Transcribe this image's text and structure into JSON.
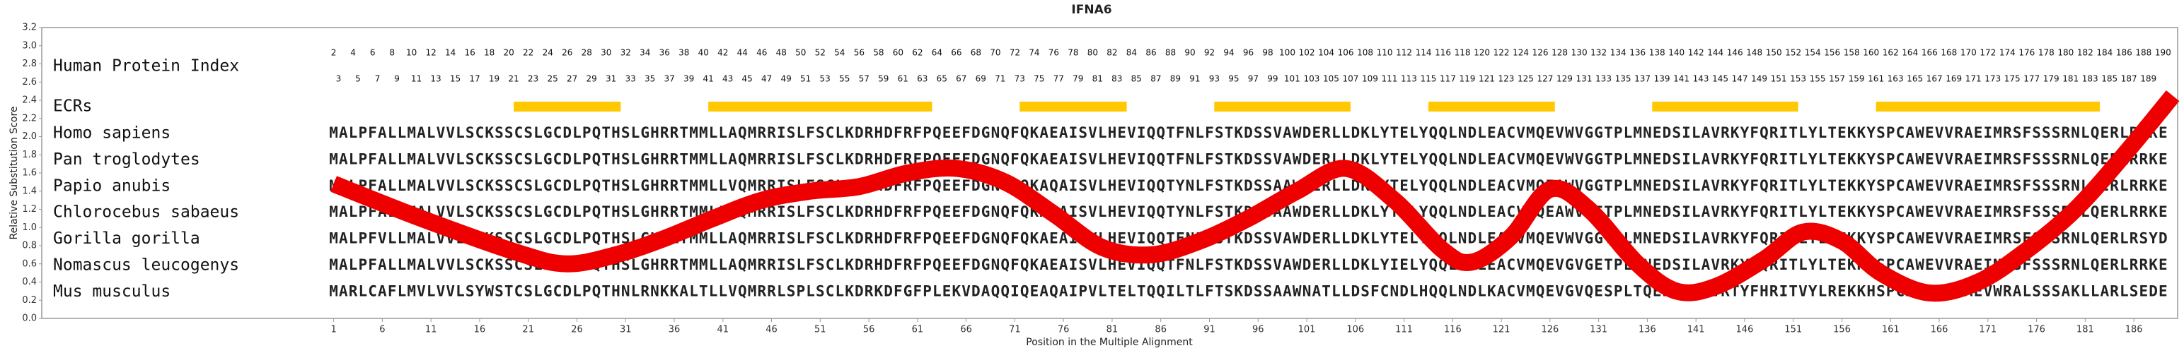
{
  "chart_data": {
    "type": "line",
    "title": "IFNA6",
    "xlabel": "Position in the Multiple Alignment",
    "ylabel": "Relative Substitution Score",
    "xlim": [
      -29,
      190.5
    ],
    "ylim": [
      0,
      3.2
    ],
    "xticks": [
      1,
      6,
      11,
      16,
      21,
      26,
      31,
      36,
      41,
      46,
      51,
      56,
      61,
      66,
      71,
      76,
      81,
      86,
      91,
      96,
      101,
      106,
      111,
      116,
      121,
      126,
      131,
      136,
      141,
      146,
      151,
      156,
      161,
      166,
      171,
      176,
      181,
      186
    ],
    "yticks": [
      {
        "value": 0,
        "label": "0.0"
      },
      0.2,
      0.4,
      0.6,
      0.8,
      {
        "value": 1,
        "label": "1.0"
      },
      1.2,
      1.4,
      1.6,
      1.8,
      {
        "value": 2,
        "label": "2.0"
      },
      2.2,
      2.4,
      2.6,
      2.8,
      {
        "value": 3,
        "label": "3.0"
      },
      3.2
    ],
    "index_label": "Human Protein Index",
    "index_even": [
      2,
      4,
      6,
      8,
      10,
      12,
      14,
      16,
      18,
      20,
      22,
      24,
      26,
      28,
      30,
      32,
      34,
      36,
      38,
      40,
      42,
      44,
      46,
      48,
      50,
      52,
      54,
      56,
      58,
      60,
      62,
      64,
      66,
      68,
      70,
      72,
      74,
      76,
      78,
      80,
      82,
      84,
      86,
      88,
      90,
      92,
      94,
      96,
      98,
      100,
      102,
      104,
      106,
      108,
      110,
      112,
      114,
      116,
      118,
      120,
      122,
      124,
      126,
      128,
      130,
      132,
      134,
      136,
      138,
      140,
      142,
      144,
      146,
      148,
      150,
      152,
      154,
      156,
      158,
      160,
      162,
      164,
      166,
      168,
      170,
      172,
      174,
      176,
      178,
      180,
      182,
      184,
      186,
      188,
      190
    ],
    "index_odd": [
      3,
      5,
      7,
      9,
      11,
      13,
      15,
      17,
      19,
      21,
      23,
      25,
      27,
      29,
      31,
      33,
      35,
      37,
      39,
      41,
      43,
      45,
      47,
      49,
      51,
      53,
      55,
      57,
      59,
      61,
      63,
      65,
      67,
      69,
      71,
      73,
      75,
      77,
      79,
      81,
      83,
      85,
      87,
      89,
      91,
      93,
      95,
      97,
      99,
      101,
      103,
      105,
      107,
      109,
      111,
      113,
      115,
      117,
      119,
      121,
      123,
      125,
      127,
      129,
      131,
      133,
      135,
      137,
      139,
      141,
      143,
      145,
      147,
      149,
      151,
      153,
      155,
      157,
      159,
      161,
      163,
      165,
      167,
      169,
      171,
      173,
      175,
      177,
      179,
      181,
      183,
      185,
      187,
      189
    ],
    "ecr_label": "ECRs",
    "ecr_color": "#ffc800",
    "ecrs": [
      [
        19.5,
        30.5
      ],
      [
        39.5,
        62.5
      ],
      [
        71.5,
        82.5
      ],
      [
        91.5,
        105.5
      ],
      [
        113.5,
        126.5
      ],
      [
        136.5,
        151.5
      ],
      [
        159.5,
        182.5
      ]
    ],
    "conserved_color": "#1c3c8c",
    "variant_color": "#3c9a3c",
    "alignment": [
      {
        "name": "Homo sapiens",
        "sequence": "MALPFALLMALVVLSCKSSCSLGCDLPQTHSLGHRRTMMLLAQMRRISLFSCLKDRHDFRFPQEEFDGNQFQKAEAISVLHEVIQQTFNLFSTKDSSVAWDERLLDKLYTELYQQLNDLEACVMQEVWVGGTPLMNEDSILAVRKYFQRITLYLTEKKYSPCAWEVVRAEIMRSFSSSRNLQERLRRKE"
      },
      {
        "name": "Pan troglodytes",
        "sequence": "MALPFALLMALVVLSCKSSCSLGCDLPQTHSLGHRRTMMLLAQMRRISLFSCLKDRHDFRFPQEEFDGNQFQKAEAISVLHEVIQQTFNLFSTKDSSVAWDERLLDKLYTELYQQLNDLEACVMQEVWVGGTPLMNEDSILAVRKYFQRITLYLTEKKYSPCAWEVVRAEIMRSFSSSRNLQERLRRKE"
      },
      {
        "name": "Papio anubis",
        "sequence": "MALPFALLMALVVLSCKSSCSLGCDLPQTHSLGHRRTMMLLVQMRRISLFSCLKDRHDFRFPQEEFDGNQFQKAQAISVLHEVIQQTYNLFSTKDSSAAWDERLLDKLYTELYQQLNDLEACVMQEAWVGGTPLMNEDSILAVRKYFQRITLYLTEKKYSPCAWEVVRAEIMRSFSSSRNLQERLRRKE"
      },
      {
        "name": "Chlorocebus sabaeus",
        "sequence": "MALPFALLMALVVLSCKSSCSLGCDLPQTHSLGHRRTMMLLVQMRRISLFSCLKDRHDFRFPQEEFDGNQFQKAQAISVLHEVIQQTYNLFSTKDSSAAWDERLLDKLYTELYQQLNDLEACVMQEAWVGETPLMNEDSILAVRKYFQRITLYLTEKKYSPCAWEVVRAEIMRSFSSSRNLQERLRRKE"
      },
      {
        "name": "Gorilla gorilla",
        "sequence": "MALPFVLLMALVVLSCKSSCSLGCDLPQTHSLGHRRTMMLLAQMRRISLFSCLKDRHDFRFPQEEFDGNQFQKAEAISVLHEVIQQTFNLFSTKDSSVAWDERLLDKLYTELYQQLNDLEACVMQEVWVGGTPLMNEDSILAVRKYFQRITLYLTEKKYSPCAWEVVRAEIMRSFSSSRNLQERLRSYD"
      },
      {
        "name": "Nomascus leucogenys",
        "sequence": "MALPFALLMALVVLSCKSSCSLGCDLPQTHSLGHRRTMMLLAQMRRISLFSCLKDRHDFRFPQEEFDGNQFQKAEAISVLHEVIQQTFNLFSTKDSSVAWDERLLDKLYIELYQQLNDLEACVMQEVGVGETPLMNEDSILAVRKYFQRITLYLTEKKYSPCAWEVVRAEIMRSFSSSRNLQERLRRKE"
      },
      {
        "name": "Mus musculus",
        "sequence": "MARLCAFLMVLVVLSYWSTCSLGCDLPQTHNLRNKKALTLLVQMRRLSPLSCLKDRKDFGFPLEKVDAQQIQEAQAIPVLTELTQQILTLFTSKDSSAAWNATLLDSFCNDLHQQLNDLKACVMQEVGVQESPLTQEDSLLAVRTYFHRITVYLREKKHSPCAWEVVRAEVWRALSSSAKLLARLSEDE"
      }
    ],
    "x": [
      1,
      10,
      20,
      25,
      30,
      35,
      40,
      45,
      50,
      55,
      60,
      65,
      70,
      75,
      80,
      85,
      90,
      95,
      100,
      105,
      110,
      115,
      118,
      122,
      126,
      130,
      135,
      139,
      143,
      148,
      152,
      156,
      160,
      165,
      170,
      175,
      180,
      185,
      190
    ],
    "series": [
      {
        "color": "#ee0000",
        "values": [
          1.48,
          1.1,
          0.72,
          0.6,
          0.7,
          0.88,
          1.1,
          1.3,
          1.4,
          1.45,
          1.6,
          1.65,
          1.5,
          1.15,
          0.78,
          0.7,
          0.85,
          1.1,
          1.4,
          1.65,
          1.3,
          0.75,
          0.62,
          0.9,
          1.42,
          1.2,
          0.6,
          0.3,
          0.35,
          0.65,
          0.95,
          0.85,
          0.5,
          0.28,
          0.4,
          0.75,
          1.2,
          1.8,
          2.45
        ]
      }
    ]
  }
}
